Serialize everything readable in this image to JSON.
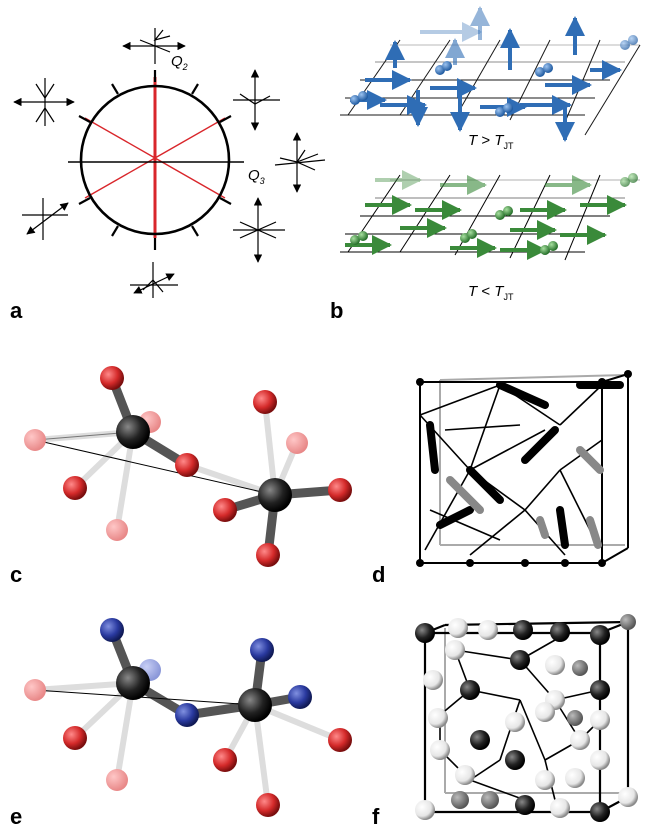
{
  "panels": [
    {
      "label": "a"
    },
    {
      "label": "b"
    },
    {
      "label": "c"
    },
    {
      "label": "d"
    },
    {
      "label": "e"
    },
    {
      "label": "f"
    }
  ],
  "panel_a": {
    "q2_main": "Q",
    "q2_sub": "2",
    "q3_main": "Q",
    "q3_sub": "3",
    "colors": {
      "ring": "#000000",
      "red_lines": "#d9262b"
    }
  },
  "panel_b": {
    "above": {
      "t": "T",
      "op": " > ",
      "tjt": "T",
      "sub": "JT",
      "color": "#2f6db5"
    },
    "below": {
      "t": "T",
      "op": " < ",
      "tjt": "T",
      "sub": "JT",
      "color": "#3a8a3a"
    }
  },
  "atoms": {
    "red": "#d42a2a",
    "black": "#1a1a1a",
    "blue": "#2a3aa0",
    "white": "#ffffff"
  }
}
